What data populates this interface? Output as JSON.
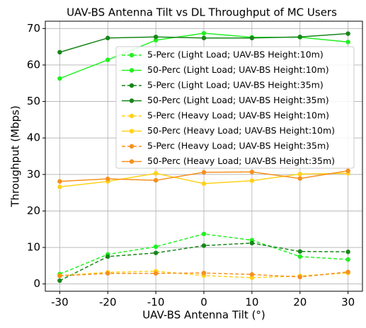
{
  "chart_data": {
    "type": "line",
    "title": "UAV-BS Antenna Tilt vs DL Throughput of MC Users",
    "x_label": "UAV-BS Antenna Tilt (°)",
    "y_label": "Throughput (Mbps)",
    "x": [
      -30,
      -20,
      -10,
      0,
      10,
      20,
      30
    ],
    "xlim": [
      -33,
      33
    ],
    "xticks": [
      -30,
      -20,
      -10,
      0,
      10,
      20,
      30
    ],
    "ylim": [
      -2,
      72
    ],
    "yticks": [
      0,
      10,
      20,
      30,
      40,
      50,
      60,
      70
    ],
    "grid": true,
    "legend": "upper right",
    "series": [
      {
        "name": "5-Perc (Light Load; UAV-BS Height:10m)",
        "color": "#22f022",
        "linestyle": "dashed",
        "values": [
          2.7,
          8.1,
          10.2,
          13.7,
          12.0,
          7.5,
          6.7
        ]
      },
      {
        "name": "50-Perc (Light Load; UAV-BS Height:10m)",
        "color": "#22f022",
        "linestyle": "solid",
        "values": [
          56.3,
          61.4,
          66.8,
          68.7,
          67.6,
          67.6,
          66.3
        ]
      },
      {
        "name": "5-Perc (Light Load; UAV-BS Height:35m)",
        "color": "#17861a",
        "linestyle": "dashed",
        "values": [
          0.9,
          7.5,
          8.5,
          10.5,
          11.2,
          8.9,
          8.8
        ]
      },
      {
        "name": "50-Perc (Light Load; UAV-BS Height:35m)",
        "color": "#17861a",
        "linestyle": "solid",
        "values": [
          63.5,
          67.4,
          67.7,
          67.4,
          67.4,
          67.7,
          68.6
        ]
      },
      {
        "name": "5-Perc (Heavy Load; UAV-BS Height:10m)",
        "color": "#ffd21a",
        "linestyle": "dashed",
        "values": [
          2.3,
          3.2,
          3.5,
          2.3,
          1.7,
          2.2,
          3.0
        ]
      },
      {
        "name": "50-Perc (Heavy Load; UAV-BS Height:10m)",
        "color": "#ffd21a",
        "linestyle": "solid",
        "values": [
          26.6,
          28.1,
          30.3,
          27.5,
          28.3,
          30.1,
          30.3
        ]
      },
      {
        "name": "5-Perc (Heavy Load; UAV-BS Height:35m)",
        "color": "#f5901f",
        "linestyle": "dashed",
        "values": [
          2.2,
          2.9,
          2.9,
          3.0,
          2.6,
          1.9,
          3.3
        ]
      },
      {
        "name": "50-Perc (Heavy Load; UAV-BS Height:35m)",
        "color": "#f5901f",
        "linestyle": "solid",
        "values": [
          28.1,
          28.8,
          28.4,
          30.6,
          30.7,
          28.9,
          31.0
        ]
      }
    ]
  }
}
